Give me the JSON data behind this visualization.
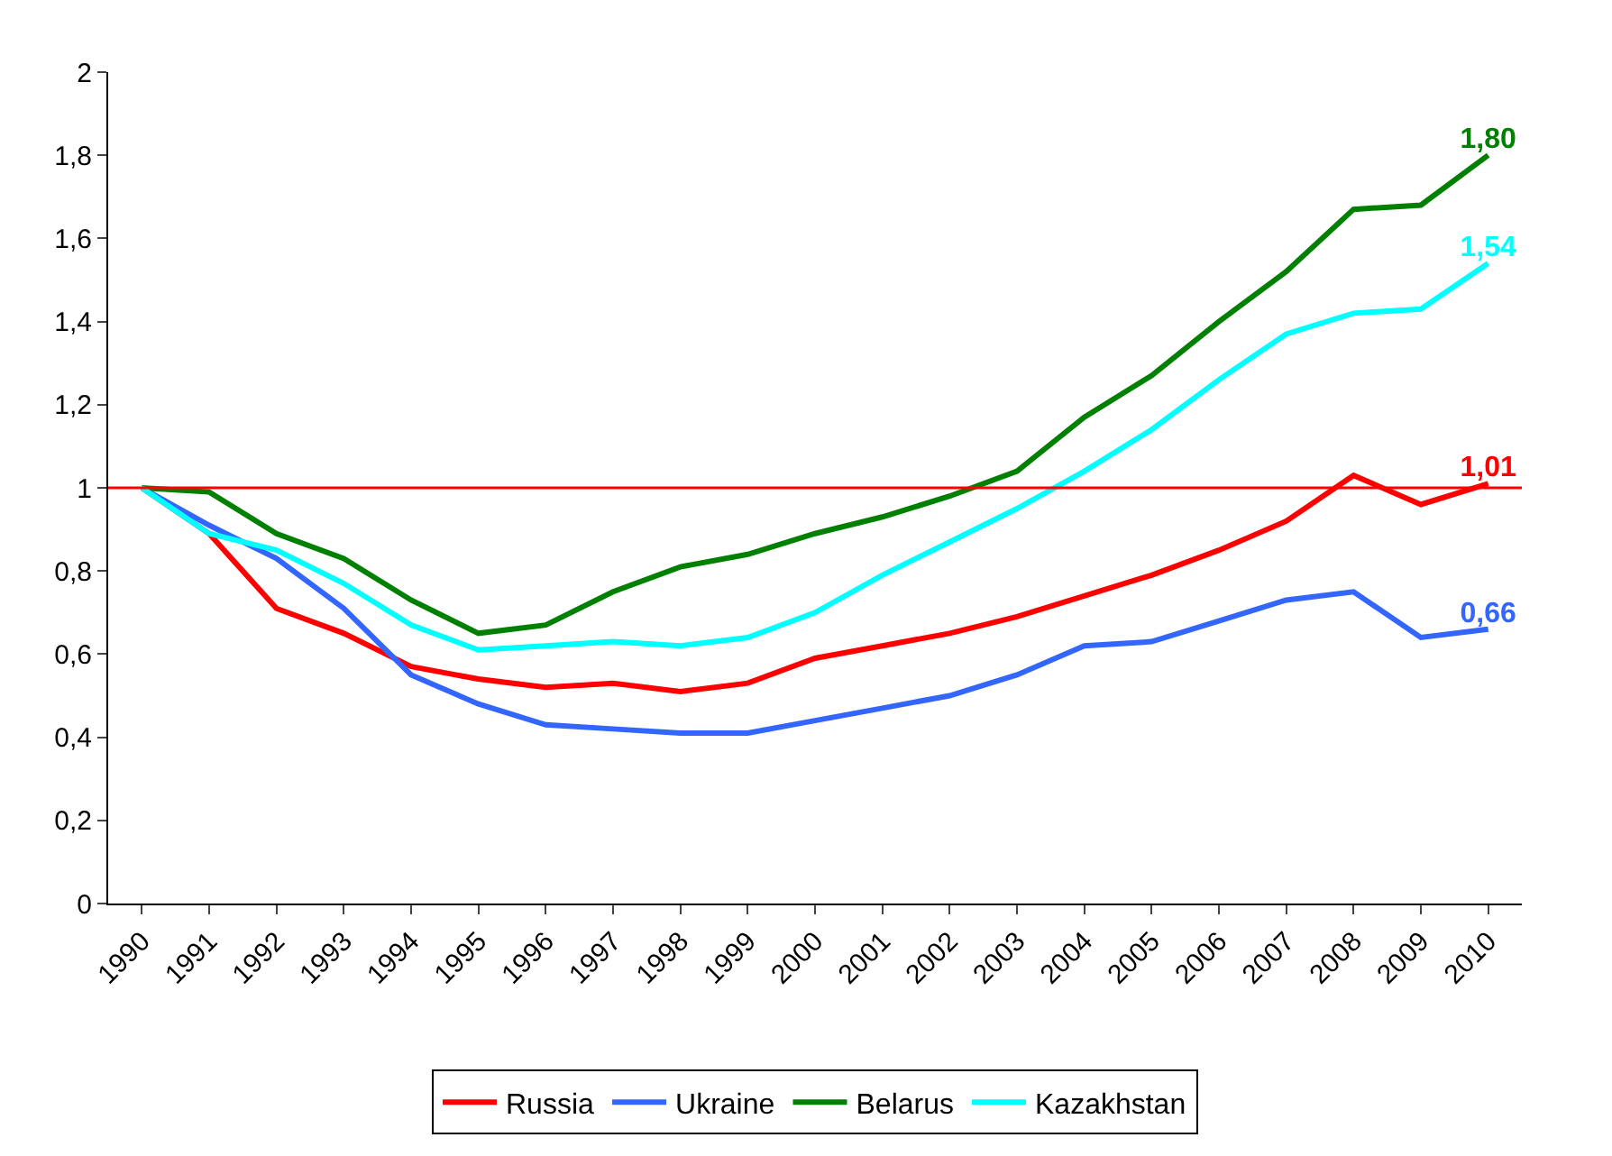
{
  "chart_data": {
    "type": "line",
    "categories": [
      "1990",
      "1991",
      "1992",
      "1993",
      "1994",
      "1995",
      "1996",
      "1997",
      "1998",
      "1999",
      "2000",
      "2001",
      "2002",
      "2003",
      "2004",
      "2005",
      "2006",
      "2007",
      "2008",
      "2009",
      "2010"
    ],
    "ylim": [
      0,
      2
    ],
    "yticks": [
      0,
      {
        "value": 0.2,
        "label": "0,2"
      },
      {
        "value": 0.4,
        "label": "0,4"
      },
      {
        "value": 0.6,
        "label": "0,6"
      },
      {
        "value": 0.8,
        "label": "0,8"
      },
      1,
      {
        "value": 1.2,
        "label": "1,2"
      },
      {
        "value": 1.4,
        "label": "1,4"
      },
      {
        "value": 1.6,
        "label": "1,6"
      },
      {
        "value": 1.8,
        "label": "1,8"
      },
      2
    ],
    "legend": "bottom",
    "marker": "none",
    "line_style": "solid",
    "ref_lines": [
      {
        "axis": "y",
        "value": 1,
        "label": null,
        "color": "#ff0000"
      }
    ],
    "series": [
      {
        "name": "Russia",
        "color": "#ff0000",
        "values": [
          1.0,
          0.89,
          0.71,
          0.65,
          0.57,
          0.54,
          0.52,
          0.53,
          0.51,
          0.53,
          0.59,
          0.62,
          0.65,
          0.69,
          0.74,
          0.79,
          0.85,
          0.92,
          1.03,
          0.96,
          1.01
        ],
        "value_labels": [
          null,
          null,
          null,
          null,
          null,
          null,
          null,
          null,
          null,
          null,
          null,
          null,
          null,
          null,
          null,
          null,
          null,
          null,
          null,
          null,
          "1,01"
        ]
      },
      {
        "name": "Ukraine",
        "color": "#3366ff",
        "values": [
          1.0,
          0.91,
          0.83,
          0.71,
          0.55,
          0.48,
          0.43,
          0.42,
          0.41,
          0.41,
          0.44,
          0.47,
          0.5,
          0.55,
          0.62,
          0.63,
          0.68,
          0.73,
          0.75,
          0.64,
          0.66
        ],
        "value_labels": [
          null,
          null,
          null,
          null,
          null,
          null,
          null,
          null,
          null,
          null,
          null,
          null,
          null,
          null,
          null,
          null,
          null,
          null,
          null,
          null,
          "0,66"
        ]
      },
      {
        "name": "Belarus",
        "color": "#008000",
        "values": [
          1.0,
          0.99,
          0.89,
          0.83,
          0.73,
          0.65,
          0.67,
          0.75,
          0.81,
          0.84,
          0.89,
          0.93,
          0.98,
          1.04,
          1.17,
          1.27,
          1.4,
          1.52,
          1.67,
          1.68,
          1.8
        ],
        "value_labels": [
          null,
          null,
          null,
          null,
          null,
          null,
          null,
          null,
          null,
          null,
          null,
          null,
          null,
          null,
          null,
          null,
          null,
          null,
          null,
          null,
          "1,80"
        ]
      },
      {
        "name": "Kazakhstan",
        "color": "#00ffff",
        "values": [
          1.0,
          0.89,
          0.85,
          0.77,
          0.67,
          0.61,
          0.62,
          0.63,
          0.62,
          0.64,
          0.7,
          0.79,
          0.87,
          0.95,
          1.04,
          1.14,
          1.26,
          1.37,
          1.42,
          1.43,
          1.54
        ],
        "value_labels": [
          null,
          null,
          null,
          null,
          null,
          null,
          null,
          null,
          null,
          null,
          null,
          null,
          null,
          null,
          null,
          null,
          null,
          null,
          null,
          null,
          "1,54"
        ]
      }
    ]
  }
}
